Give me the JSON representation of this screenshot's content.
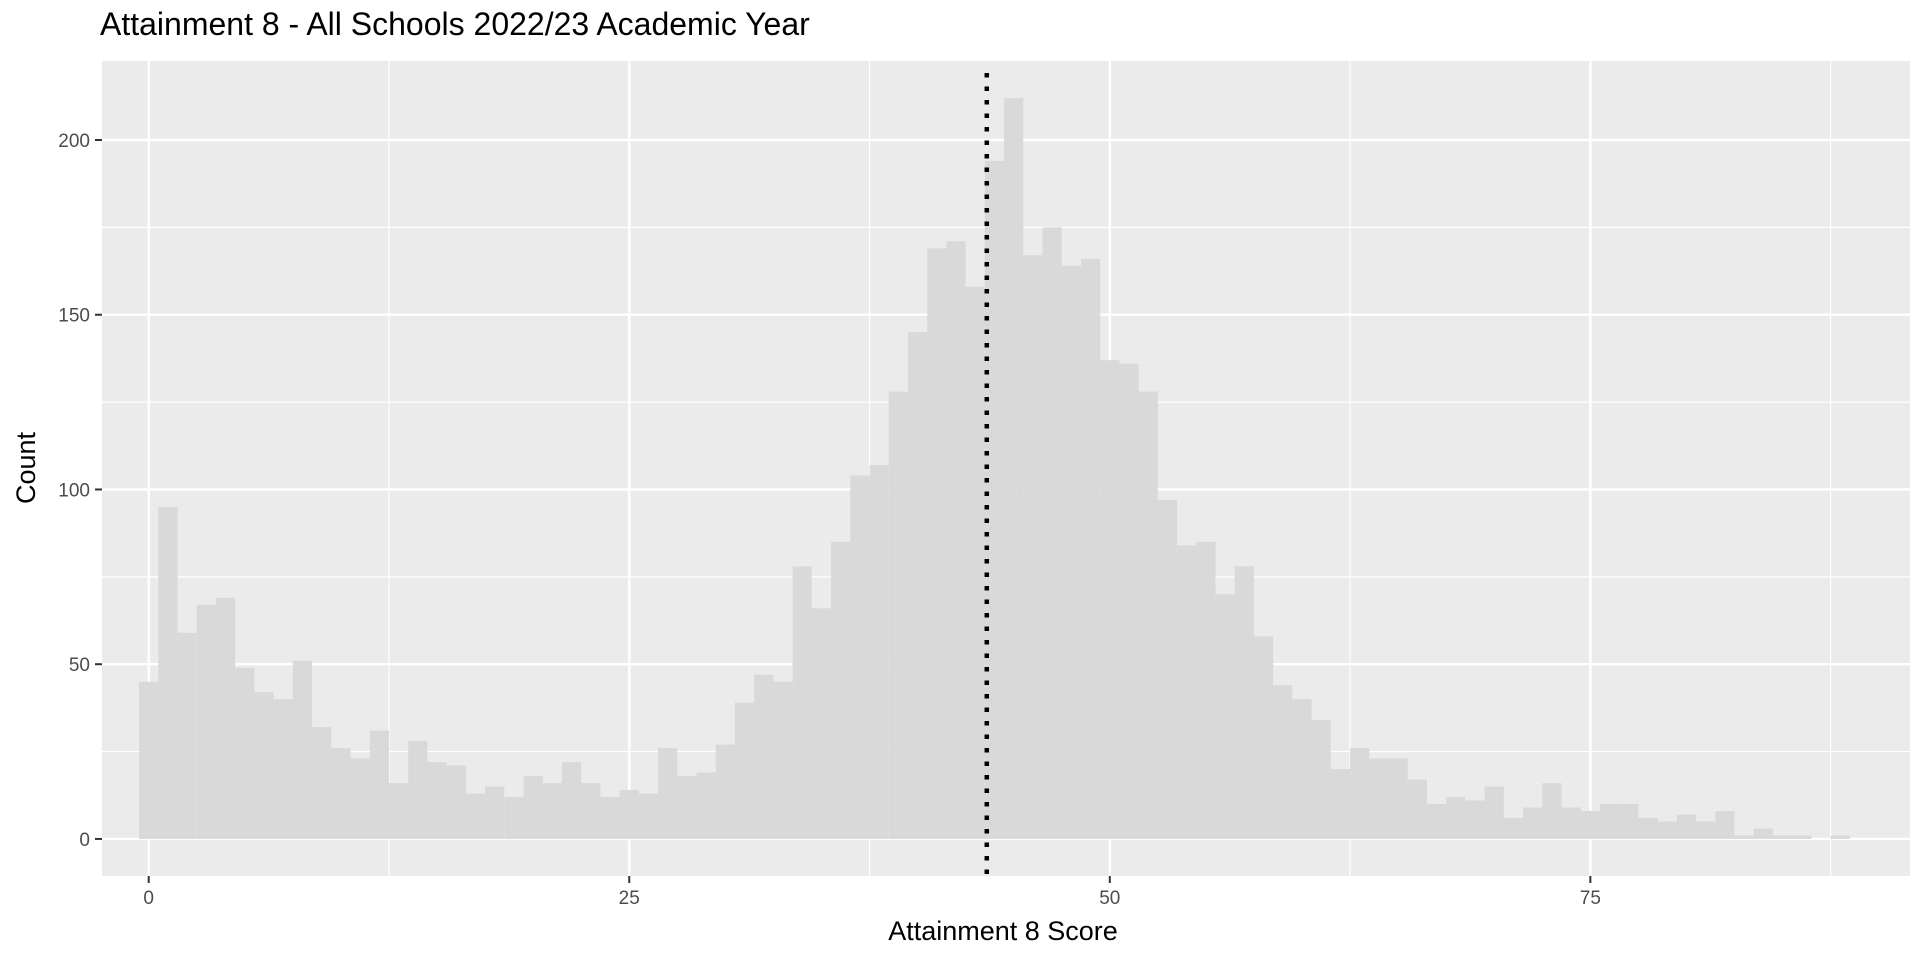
{
  "chart_data": {
    "type": "bar",
    "title": "Attainment 8 - All Schools 2022/23 Academic Year",
    "xlabel": "Attainment 8 Score",
    "ylabel": "Count",
    "xlim": [
      -2.43,
      91.63
    ],
    "ylim": [
      -10.6,
      222.6
    ],
    "x_ticks": [
      0,
      25,
      50,
      75
    ],
    "x_tick_labels": [
      "0",
      "25",
      "50",
      "75"
    ],
    "y_ticks": [
      0,
      50,
      100,
      150,
      200
    ],
    "y_tick_labels": [
      "0",
      "50",
      "100",
      "150",
      "200"
    ],
    "grid": true,
    "bin_width": 1,
    "bar_fill": "#d9d9d9",
    "panel_background": "#ebebeb",
    "reference_line": {
      "x": 43.6,
      "style": "dotted",
      "color": "#000000"
    },
    "bins": [
      {
        "x": 0,
        "count": 45
      },
      {
        "x": 1,
        "count": 95
      },
      {
        "x": 2,
        "count": 59
      },
      {
        "x": 3,
        "count": 67
      },
      {
        "x": 4,
        "count": 69
      },
      {
        "x": 5,
        "count": 49
      },
      {
        "x": 6,
        "count": 42
      },
      {
        "x": 7,
        "count": 40
      },
      {
        "x": 8,
        "count": 51
      },
      {
        "x": 9,
        "count": 32
      },
      {
        "x": 10,
        "count": 26
      },
      {
        "x": 11,
        "count": 23
      },
      {
        "x": 12,
        "count": 31
      },
      {
        "x": 13,
        "count": 16
      },
      {
        "x": 14,
        "count": 28
      },
      {
        "x": 15,
        "count": 22
      },
      {
        "x": 16,
        "count": 21
      },
      {
        "x": 17,
        "count": 13
      },
      {
        "x": 18,
        "count": 15
      },
      {
        "x": 19,
        "count": 12
      },
      {
        "x": 20,
        "count": 18
      },
      {
        "x": 21,
        "count": 16
      },
      {
        "x": 22,
        "count": 22
      },
      {
        "x": 23,
        "count": 16
      },
      {
        "x": 24,
        "count": 12
      },
      {
        "x": 25,
        "count": 14
      },
      {
        "x": 26,
        "count": 13
      },
      {
        "x": 27,
        "count": 26
      },
      {
        "x": 28,
        "count": 18
      },
      {
        "x": 29,
        "count": 19
      },
      {
        "x": 30,
        "count": 27
      },
      {
        "x": 31,
        "count": 39
      },
      {
        "x": 32,
        "count": 47
      },
      {
        "x": 33,
        "count": 45
      },
      {
        "x": 34,
        "count": 78
      },
      {
        "x": 35,
        "count": 66
      },
      {
        "x": 36,
        "count": 85
      },
      {
        "x": 37,
        "count": 104
      },
      {
        "x": 38,
        "count": 107
      },
      {
        "x": 39,
        "count": 128
      },
      {
        "x": 40,
        "count": 145
      },
      {
        "x": 41,
        "count": 169
      },
      {
        "x": 42,
        "count": 171
      },
      {
        "x": 43,
        "count": 158
      },
      {
        "x": 44,
        "count": 194
      },
      {
        "x": 45,
        "count": 212
      },
      {
        "x": 46,
        "count": 167
      },
      {
        "x": 47,
        "count": 175
      },
      {
        "x": 48,
        "count": 164
      },
      {
        "x": 49,
        "count": 166
      },
      {
        "x": 50,
        "count": 137
      },
      {
        "x": 51,
        "count": 136
      },
      {
        "x": 52,
        "count": 128
      },
      {
        "x": 53,
        "count": 97
      },
      {
        "x": 54,
        "count": 84
      },
      {
        "x": 55,
        "count": 85
      },
      {
        "x": 56,
        "count": 70
      },
      {
        "x": 57,
        "count": 78
      },
      {
        "x": 58,
        "count": 58
      },
      {
        "x": 59,
        "count": 44
      },
      {
        "x": 60,
        "count": 40
      },
      {
        "x": 61,
        "count": 34
      },
      {
        "x": 62,
        "count": 20
      },
      {
        "x": 63,
        "count": 26
      },
      {
        "x": 64,
        "count": 23
      },
      {
        "x": 65,
        "count": 23
      },
      {
        "x": 66,
        "count": 17
      },
      {
        "x": 67,
        "count": 10
      },
      {
        "x": 68,
        "count": 12
      },
      {
        "x": 69,
        "count": 11
      },
      {
        "x": 70,
        "count": 15
      },
      {
        "x": 71,
        "count": 6
      },
      {
        "x": 72,
        "count": 9
      },
      {
        "x": 73,
        "count": 16
      },
      {
        "x": 74,
        "count": 9
      },
      {
        "x": 75,
        "count": 8
      },
      {
        "x": 76,
        "count": 10
      },
      {
        "x": 77,
        "count": 10
      },
      {
        "x": 78,
        "count": 6
      },
      {
        "x": 79,
        "count": 5
      },
      {
        "x": 80,
        "count": 7
      },
      {
        "x": 81,
        "count": 5
      },
      {
        "x": 82,
        "count": 8
      },
      {
        "x": 83,
        "count": 1
      },
      {
        "x": 84,
        "count": 3
      },
      {
        "x": 85,
        "count": 1
      },
      {
        "x": 86,
        "count": 1
      },
      {
        "x": 87,
        "count": 0
      },
      {
        "x": 88,
        "count": 1
      }
    ]
  }
}
